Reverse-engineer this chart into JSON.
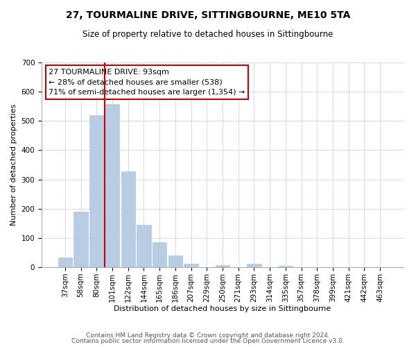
{
  "title": "27, TOURMALINE DRIVE, SITTINGBOURNE, ME10 5TA",
  "subtitle": "Size of property relative to detached houses in Sittingbourne",
  "xlabel": "Distribution of detached houses by size in Sittingbourne",
  "ylabel": "Number of detached properties",
  "footer_line1": "Contains HM Land Registry data © Crown copyright and database right 2024.",
  "footer_line2": "Contains public sector information licensed under the Open Government Licence v3.0.",
  "categories": [
    "37sqm",
    "58sqm",
    "80sqm",
    "101sqm",
    "122sqm",
    "144sqm",
    "165sqm",
    "186sqm",
    "207sqm",
    "229sqm",
    "250sqm",
    "271sqm",
    "293sqm",
    "314sqm",
    "335sqm",
    "357sqm",
    "378sqm",
    "399sqm",
    "421sqm",
    "442sqm",
    "463sqm"
  ],
  "values": [
    33,
    189,
    519,
    557,
    328,
    144,
    86,
    41,
    13,
    0,
    8,
    0,
    11,
    0,
    5,
    0,
    0,
    0,
    0,
    0,
    0
  ],
  "bar_color": "#b8cce4",
  "bar_edge_color": "#b0c8e0",
  "vline_color": "#cc0000",
  "ylim": [
    0,
    700
  ],
  "yticks": [
    0,
    100,
    200,
    300,
    400,
    500,
    600,
    700
  ],
  "ann_line1": "27 TOURMALINE DRIVE: 93sqm",
  "ann_line2": "← 28% of detached houses are smaller (538)",
  "ann_line3": "71% of semi-detached houses are larger (1,354) →",
  "background_color": "#ffffff",
  "grid_color": "#d0d8e8",
  "title_fontsize": 10,
  "subtitle_fontsize": 8.5,
  "axis_label_fontsize": 8,
  "tick_fontsize": 7.5,
  "ann_fontsize": 8,
  "footer_fontsize": 6.5
}
